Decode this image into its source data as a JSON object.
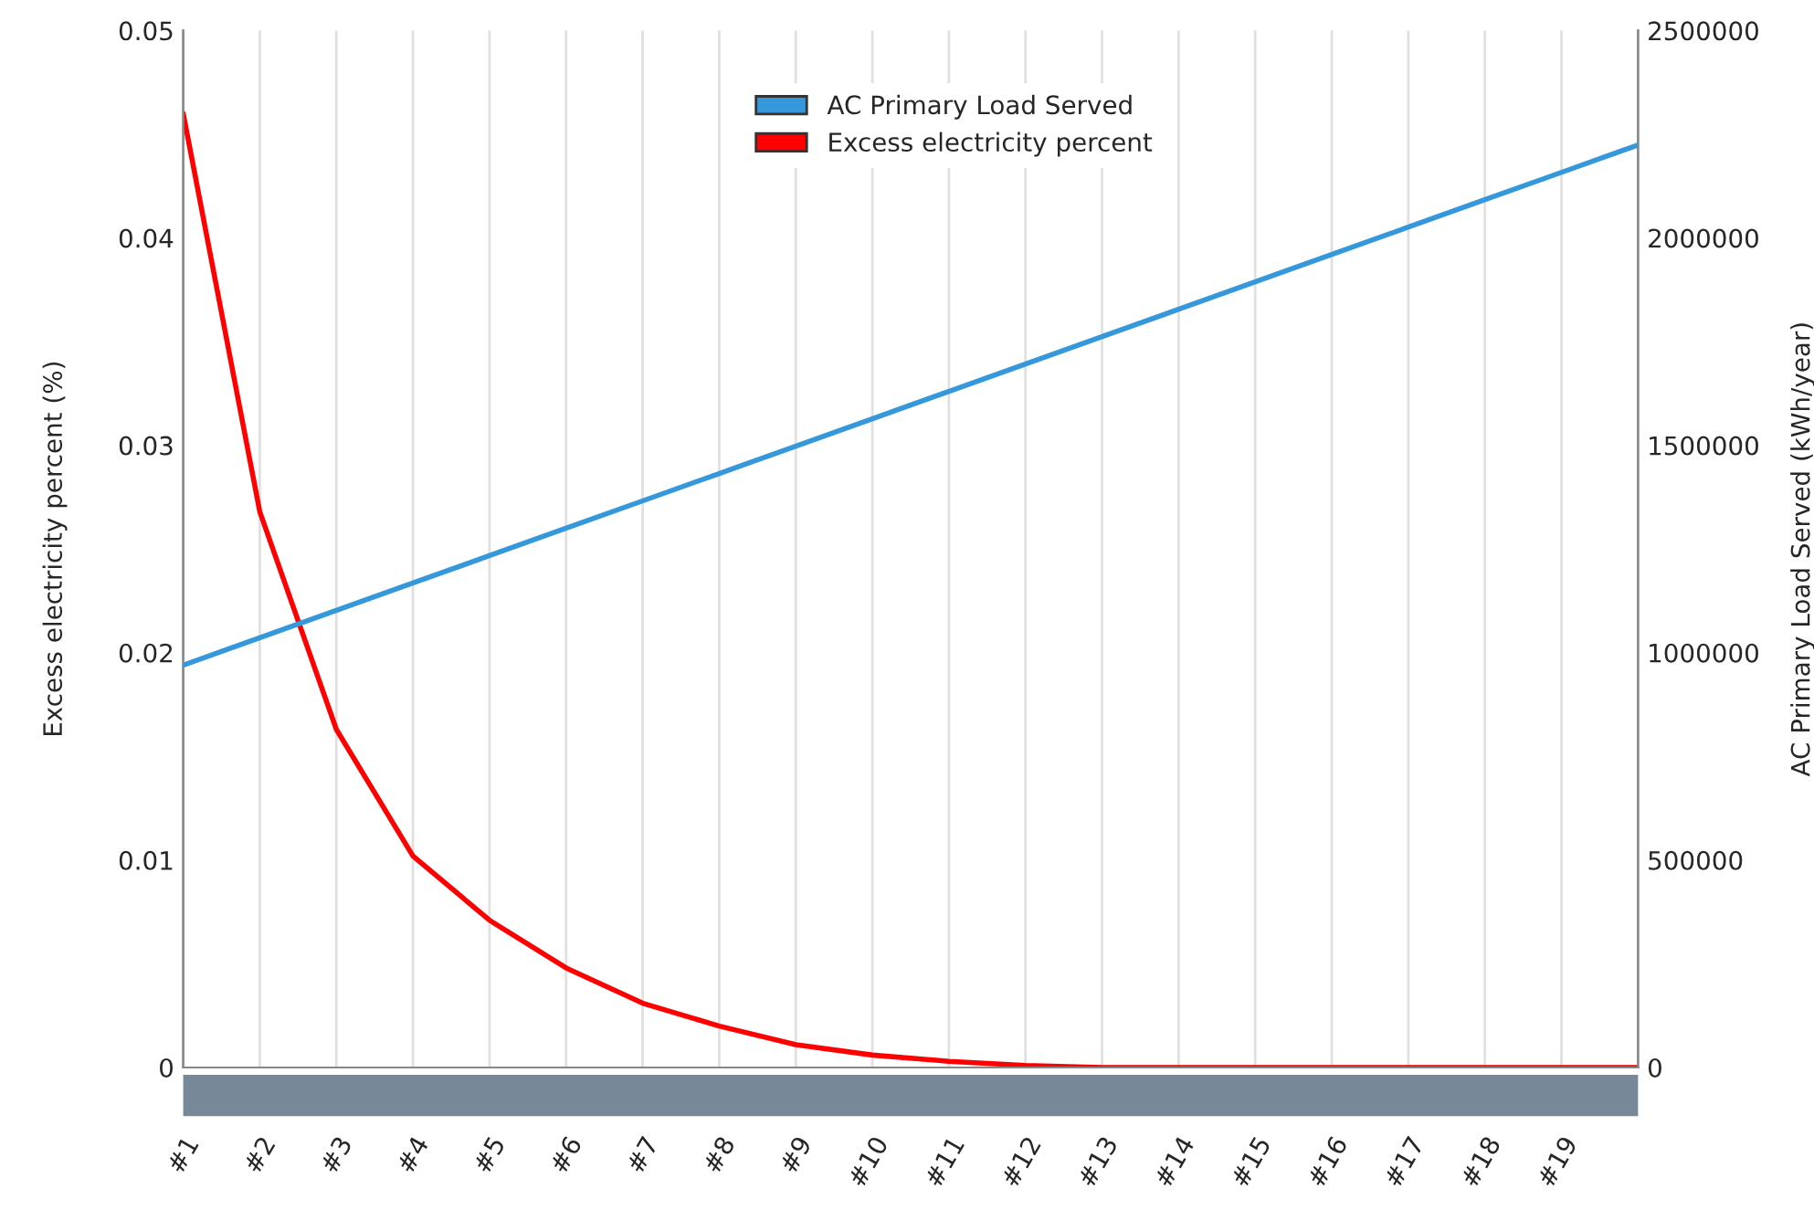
{
  "chart_data": {
    "type": "line",
    "categories": [
      "#1",
      "#2",
      "#3",
      "#4",
      "#5",
      "#6",
      "#7",
      "#8",
      "#9",
      "#10",
      "#11",
      "#12",
      "#13",
      "#14",
      "#15",
      "#16",
      "#17",
      "#18",
      "#19",
      null
    ],
    "series": [
      {
        "name": "AC Primary Load Served",
        "color": "#3498db",
        "axis": "y2",
        "values": [
          970000,
          1036000,
          1102000,
          1168000,
          1234000,
          1300000,
          1366000,
          1432000,
          1498000,
          1564000,
          1630000,
          1696000,
          1762000,
          1828000,
          1894000,
          1960000,
          2026000,
          2092000,
          2158000,
          2224000
        ]
      },
      {
        "name": "Excess electricity percent",
        "color": "#ff0000",
        "values": [
          0.046,
          0.0268,
          0.0163,
          0.0102,
          0.0071,
          0.0048,
          0.0031,
          0.002,
          0.0011,
          0.0006,
          0.0003,
          0.0001,
          0,
          0,
          0,
          0,
          0,
          0,
          0,
          0
        ]
      }
    ],
    "ylabel": "Excess electricity percent (%)",
    "y2label": "AC Primary Load Served (kWh/year)",
    "ylim": [
      0,
      0.05
    ],
    "yticks": [
      0,
      0.01,
      0.02,
      0.03,
      0.04,
      0.05
    ],
    "y2lim": [
      0,
      2500000
    ],
    "y2ticks": [
      0,
      500000,
      1000000,
      1500000,
      2000000,
      2500000
    ],
    "grid": "x",
    "legend": "top",
    "marker": "none",
    "line_style": "solid"
  }
}
